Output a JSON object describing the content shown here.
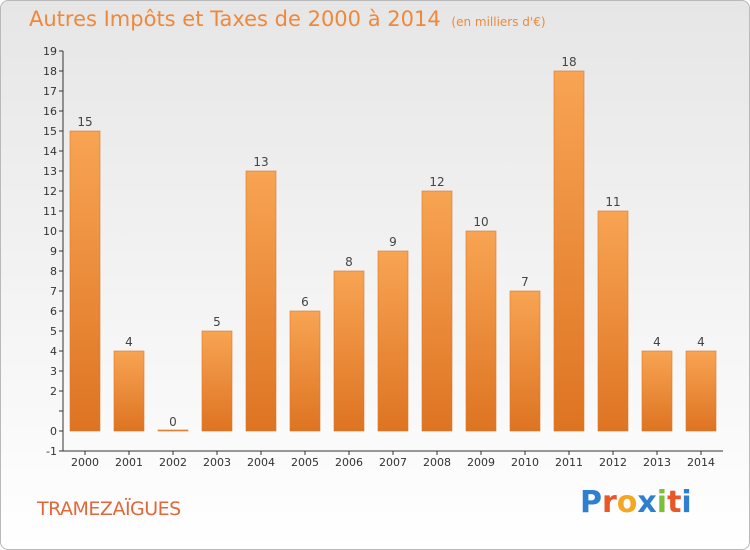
{
  "header": {
    "title": "Autres Impôts et Taxes de 2000 à 2014",
    "unit": "(en milliers d'€)"
  },
  "footer": {
    "commune": "TRAMEZAÏGUES",
    "brand": "Proxiti"
  },
  "colors": {
    "bar": "#f0883a",
    "bar_light": "#f8a95a",
    "title": "#f0883a",
    "axis": "#333333"
  },
  "chart_data": {
    "type": "bar",
    "title": "Autres Impôts et Taxes de 2000 à 2014",
    "subtitle": "(en milliers d'€)",
    "xlabel": "",
    "ylabel": "",
    "categories": [
      "2000",
      "2001",
      "2002",
      "2003",
      "2004",
      "2005",
      "2006",
      "2007",
      "2008",
      "2009",
      "2010",
      "2011",
      "2012",
      "2013",
      "2014"
    ],
    "values": [
      15,
      4,
      0,
      5,
      13,
      6,
      8,
      9,
      12,
      10,
      7,
      18,
      11,
      4,
      4
    ],
    "ylim": [
      -1,
      19
    ],
    "yticks": [
      "-1",
      "0",
      "",
      "2",
      "3",
      "4",
      "5",
      "6",
      "7",
      "8",
      "9",
      "10",
      "11",
      "12",
      "13",
      "14",
      "15",
      "16",
      "17",
      "18",
      "19"
    ],
    "grid": false,
    "data_labels": true
  }
}
